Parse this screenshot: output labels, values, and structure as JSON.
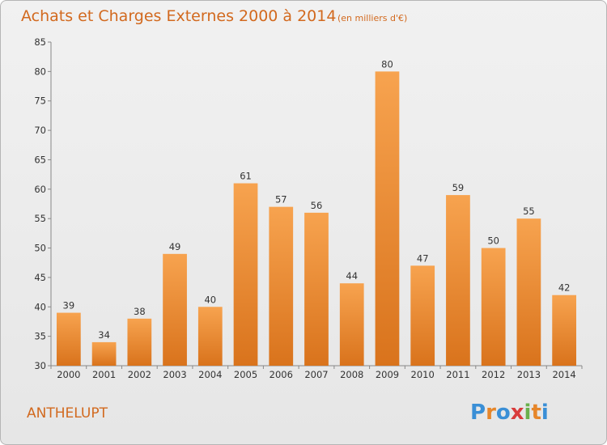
{
  "title": "Achats et Charges Externes 2000 à 2014",
  "subtitle": "(en milliers d'€)",
  "place": "ANTHELUPT",
  "logo": {
    "letters": [
      "P",
      "r",
      "o",
      "x",
      "i",
      "t",
      "i"
    ],
    "colors": [
      "#3a8fd6",
      "#e6862a",
      "#3a8fd6",
      "#d93b3b",
      "#6ab04c",
      "#e6862a",
      "#3a8fd6"
    ]
  },
  "colors": {
    "bar_top": "#f7a34f",
    "bar_bottom": "#d9731c",
    "accent": "#d2691e"
  },
  "chart_data": {
    "type": "bar",
    "title": "Achats et Charges Externes 2000 à 2014",
    "subtitle": "(en milliers d'€)",
    "xlabel": "",
    "ylabel": "",
    "categories": [
      "2000",
      "2001",
      "2002",
      "2003",
      "2004",
      "2005",
      "2006",
      "2007",
      "2008",
      "2009",
      "2010",
      "2011",
      "2012",
      "2013",
      "2014"
    ],
    "values": [
      39,
      34,
      38,
      49,
      40,
      61,
      57,
      56,
      44,
      80,
      47,
      59,
      50,
      55,
      42
    ],
    "ylim": [
      30,
      85
    ],
    "yticks": [
      30,
      35,
      40,
      45,
      50,
      55,
      60,
      65,
      70,
      75,
      80,
      85
    ],
    "grid": false,
    "legend": "none",
    "data_labels": true
  }
}
